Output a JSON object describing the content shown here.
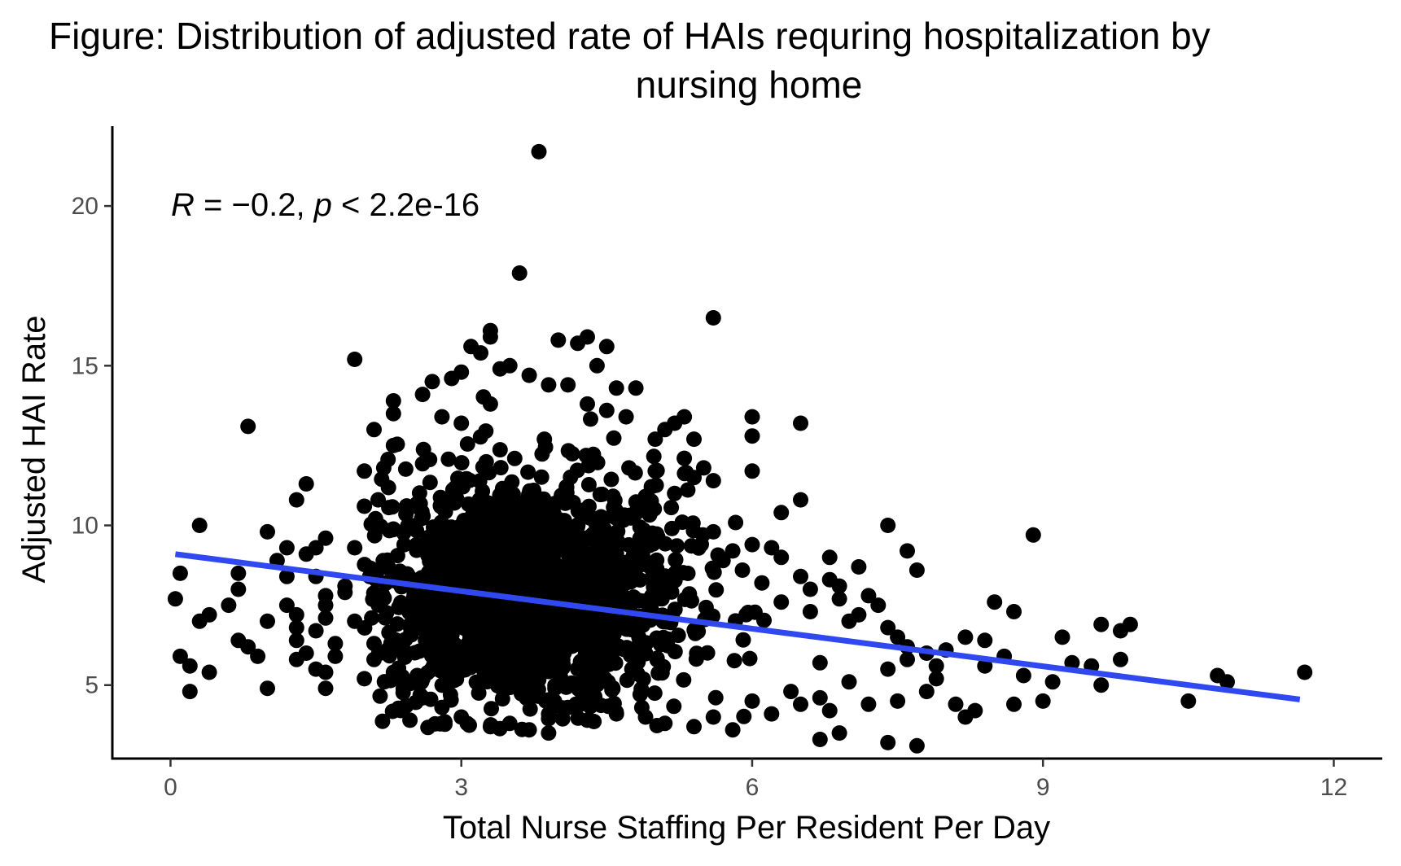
{
  "chart_data": {
    "type": "scatter",
    "title_line1": "Figure: Distribution of adjusted rate of HAIs requring hospitalization by",
    "title_line2": "nursing home",
    "xlabel": "Total Nurse Staffing Per Resident Per Day",
    "ylabel": "Adjusted HAI Rate",
    "xlim": [
      -0.6,
      12.5
    ],
    "ylim": [
      2.7,
      22.5
    ],
    "x_ticks": [
      0,
      3,
      6,
      9,
      12
    ],
    "y_ticks": [
      5,
      10,
      15,
      20
    ],
    "grid": false,
    "annotation": {
      "r_symbol": "R",
      "r_value": " = −0.2, ",
      "p_symbol": "p",
      "p_value": " < 2.2e-16"
    },
    "fit_line": {
      "color": "#3048f0",
      "x": [
        0.05,
        11.65
      ],
      "y": [
        9.1,
        4.55
      ]
    },
    "point_color": "#000000",
    "points": [
      [
        3.8,
        21.7
      ],
      [
        3.6,
        17.9
      ],
      [
        5.6,
        16.5
      ],
      [
        1.9,
        15.2
      ],
      [
        0.8,
        13.1
      ],
      [
        6.5,
        13.2
      ],
      [
        6.0,
        13.4
      ],
      [
        6.0,
        12.8
      ],
      [
        6.0,
        11.7
      ],
      [
        6.3,
        10.4
      ],
      [
        6.5,
        10.8
      ],
      [
        0.3,
        10.0
      ],
      [
        8.9,
        9.7
      ],
      [
        7.4,
        10.0
      ],
      [
        7.6,
        9.2
      ],
      [
        7.7,
        8.6
      ],
      [
        7.1,
        8.7
      ],
      [
        8.5,
        7.6
      ],
      [
        8.7,
        7.3
      ],
      [
        9.6,
        6.9
      ],
      [
        9.9,
        6.9
      ],
      [
        9.8,
        6.7
      ],
      [
        9.2,
        6.5
      ],
      [
        9.8,
        5.8
      ],
      [
        10.8,
        5.3
      ],
      [
        10.9,
        5.1
      ],
      [
        11.7,
        5.4
      ],
      [
        10.5,
        4.5
      ],
      [
        9.6,
        5.0
      ],
      [
        9.1,
        5.1
      ],
      [
        9.0,
        4.5
      ],
      [
        8.7,
        4.4
      ],
      [
        8.3,
        4.2
      ],
      [
        8.2,
        4.0
      ],
      [
        8.1,
        4.4
      ],
      [
        7.4,
        3.2
      ],
      [
        7.7,
        3.1
      ],
      [
        6.7,
        3.3
      ],
      [
        6.9,
        3.5
      ],
      [
        0.1,
        8.5
      ],
      [
        0.05,
        7.7
      ],
      [
        0.1,
        5.9
      ],
      [
        0.2,
        5.6
      ],
      [
        0.2,
        4.8
      ],
      [
        0.4,
        5.4
      ],
      [
        0.3,
        7.0
      ],
      [
        0.4,
        7.2
      ],
      [
        0.6,
        7.5
      ],
      [
        0.7,
        8.0
      ],
      [
        0.7,
        8.5
      ],
      [
        0.7,
        6.4
      ],
      [
        0.8,
        6.2
      ],
      [
        0.9,
        5.9
      ],
      [
        1.0,
        4.9
      ],
      [
        1.0,
        7.0
      ],
      [
        1.0,
        9.8
      ],
      [
        1.1,
        8.9
      ],
      [
        1.2,
        9.3
      ],
      [
        1.2,
        8.4
      ],
      [
        1.2,
        7.5
      ],
      [
        1.3,
        10.8
      ],
      [
        1.4,
        11.3
      ],
      [
        1.3,
        7.2
      ],
      [
        1.3,
        6.8
      ],
      [
        1.3,
        6.4
      ],
      [
        1.3,
        5.8
      ],
      [
        1.4,
        6.0
      ],
      [
        1.4,
        9.1
      ],
      [
        1.5,
        9.3
      ],
      [
        1.5,
        8.4
      ],
      [
        1.6,
        9.6
      ],
      [
        1.6,
        7.8
      ],
      [
        1.6,
        7.5
      ],
      [
        1.6,
        7.1
      ],
      [
        1.5,
        6.7
      ],
      [
        1.5,
        5.5
      ],
      [
        1.6,
        5.4
      ],
      [
        1.7,
        5.9
      ],
      [
        1.7,
        6.3
      ],
      [
        1.6,
        4.9
      ],
      [
        1.8,
        8.1
      ],
      [
        1.8,
        7.9
      ],
      [
        1.9,
        9.3
      ],
      [
        1.9,
        7.0
      ],
      [
        2.0,
        5.2
      ],
      [
        2.0,
        10.6
      ],
      [
        2.0,
        11.7
      ],
      [
        2.1,
        13.0
      ],
      [
        2.2,
        11.8
      ],
      [
        2.3,
        12.5
      ],
      [
        2.3,
        13.5
      ],
      [
        2.3,
        13.9
      ],
      [
        2.6,
        14.1
      ],
      [
        2.7,
        14.5
      ],
      [
        2.8,
        13.4
      ],
      [
        2.9,
        14.6
      ],
      [
        3.0,
        14.8
      ],
      [
        3.1,
        15.6
      ],
      [
        3.2,
        15.4
      ],
      [
        3.3,
        15.9
      ],
      [
        3.3,
        16.1
      ],
      [
        3.4,
        14.9
      ],
      [
        3.5,
        15.0
      ],
      [
        3.3,
        13.8
      ],
      [
        3.0,
        13.2
      ],
      [
        3.7,
        14.7
      ],
      [
        3.9,
        14.4
      ],
      [
        4.0,
        15.8
      ],
      [
        4.2,
        15.7
      ],
      [
        4.3,
        15.9
      ],
      [
        4.5,
        15.6
      ],
      [
        4.4,
        15.0
      ],
      [
        4.1,
        14.4
      ],
      [
        4.3,
        13.8
      ],
      [
        4.6,
        14.3
      ],
      [
        4.8,
        14.3
      ],
      [
        4.5,
        13.6
      ],
      [
        4.7,
        13.4
      ],
      [
        5.0,
        12.7
      ],
      [
        5.1,
        13.0
      ],
      [
        5.2,
        13.2
      ],
      [
        5.3,
        13.4
      ],
      [
        5.4,
        12.7
      ],
      [
        5.3,
        12.1
      ],
      [
        5.5,
        11.8
      ],
      [
        5.4,
        11.5
      ],
      [
        5.6,
        11.4
      ],
      [
        5.2,
        11.0
      ],
      [
        5.0,
        11.7
      ],
      [
        5.6,
        9.8
      ],
      [
        5.8,
        9.2
      ],
      [
        6.0,
        9.4
      ],
      [
        6.2,
        9.3
      ],
      [
        6.3,
        9.0
      ],
      [
        6.5,
        8.4
      ],
      [
        6.6,
        8.0
      ],
      [
        6.8,
        9.0
      ],
      [
        6.8,
        8.3
      ],
      [
        6.9,
        8.1
      ],
      [
        7.0,
        7.0
      ],
      [
        7.1,
        7.2
      ],
      [
        7.3,
        7.5
      ],
      [
        7.4,
        6.8
      ],
      [
        7.5,
        6.5
      ],
      [
        7.6,
        6.2
      ],
      [
        7.8,
        6.0
      ],
      [
        7.9,
        5.6
      ],
      [
        7.4,
        5.5
      ],
      [
        7.0,
        5.1
      ],
      [
        6.7,
        5.7
      ],
      [
        6.7,
        4.6
      ],
      [
        6.5,
        4.4
      ],
      [
        6.8,
        4.2
      ],
      [
        6.4,
        4.8
      ],
      [
        6.2,
        4.1
      ],
      [
        6.0,
        4.5
      ],
      [
        5.8,
        3.6
      ],
      [
        5.6,
        4.0
      ],
      [
        5.4,
        3.7
      ],
      [
        5.1,
        3.8
      ],
      [
        4.9,
        4.0
      ],
      [
        4.6,
        4.1
      ],
      [
        4.3,
        3.9
      ],
      [
        4.1,
        4.3
      ],
      [
        3.9,
        3.5
      ],
      [
        3.7,
        3.6
      ],
      [
        3.5,
        3.8
      ],
      [
        3.3,
        3.7
      ],
      [
        3.0,
        4.0
      ],
      [
        2.8,
        4.3
      ],
      [
        2.6,
        4.6
      ],
      [
        2.4,
        4.9
      ],
      [
        2.3,
        5.4
      ],
      [
        2.1,
        5.8
      ],
      [
        2.1,
        6.3
      ],
      [
        7.8,
        4.8
      ],
      [
        7.5,
        4.5
      ],
      [
        7.2,
        4.4
      ],
      [
        8.4,
        5.6
      ],
      [
        8.6,
        5.9
      ],
      [
        8.8,
        5.3
      ],
      [
        9.3,
        5.7
      ],
      [
        9.5,
        5.6
      ],
      [
        6.9,
        7.7
      ],
      [
        7.2,
        7.8
      ],
      [
        6.6,
        7.3
      ],
      [
        6.3,
        7.6
      ],
      [
        6.1,
        8.2
      ],
      [
        5.9,
        8.6
      ],
      [
        5.7,
        8.9
      ],
      [
        8.0,
        6.1
      ],
      [
        8.2,
        6.5
      ],
      [
        8.4,
        6.4
      ],
      [
        7.9,
        5.2
      ],
      [
        7.6,
        5.8
      ]
    ],
    "cluster": {
      "center_x": 3.6,
      "center_y": 7.8,
      "spread_x": 0.85,
      "spread_y": 1.9,
      "count": 1600
    }
  }
}
